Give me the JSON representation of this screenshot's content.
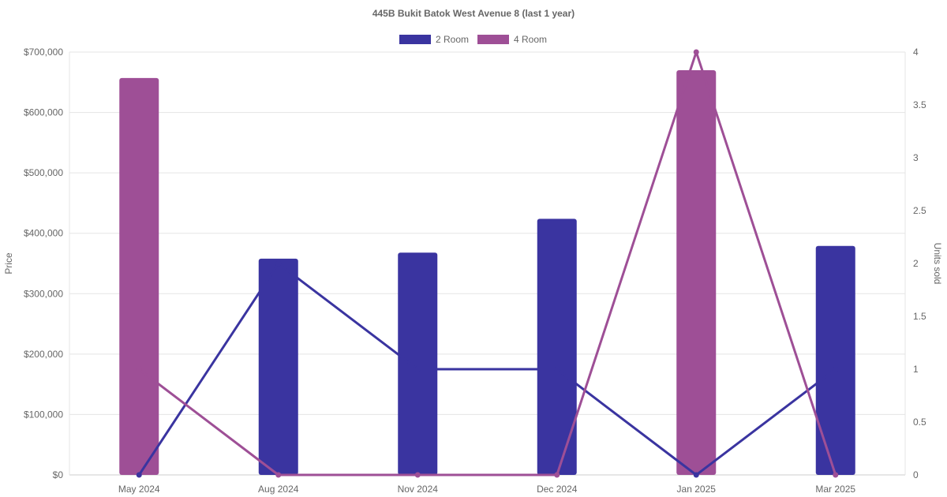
{
  "chart_data": {
    "type": "bar",
    "title": "445B Bukit Batok West Avenue 8 (last 1 year)",
    "categories": [
      "May 2024",
      "Aug 2024",
      "Nov 2024",
      "Dec 2024",
      "Jan 2025",
      "Mar 2025"
    ],
    "ylabel": "Price",
    "y2label": "Units sold",
    "ylim": [
      0,
      700000
    ],
    "y2lim": [
      0,
      4
    ],
    "y_ticks": [
      "$0",
      "$100,000",
      "$200,000",
      "$300,000",
      "$400,000",
      "$500,000",
      "$600,000",
      "$700,000"
    ],
    "y2_ticks": [
      "0",
      "0.5",
      "1",
      "1.5",
      "2",
      "2.5",
      "3",
      "3.5",
      "4"
    ],
    "legend_position": "top-center",
    "grid": true,
    "series": [
      {
        "name": "2 Room",
        "color": "#3a34a0",
        "bar_values": [
          null,
          358000,
          368000,
          null,
          null,
          379000
        ],
        "units_sold": [
          0,
          2,
          1,
          1,
          0,
          1
        ]
      },
      {
        "name": "4 Room",
        "color": "#9e4f96",
        "bar_values": [
          657000,
          null,
          null,
          null,
          670000,
          null
        ],
        "units_sold": [
          1,
          0,
          0,
          0,
          4,
          0
        ]
      }
    ],
    "extra_bars": [
      {
        "series": "2 Room",
        "category": "Dec 2024",
        "value": 424000
      }
    ]
  }
}
